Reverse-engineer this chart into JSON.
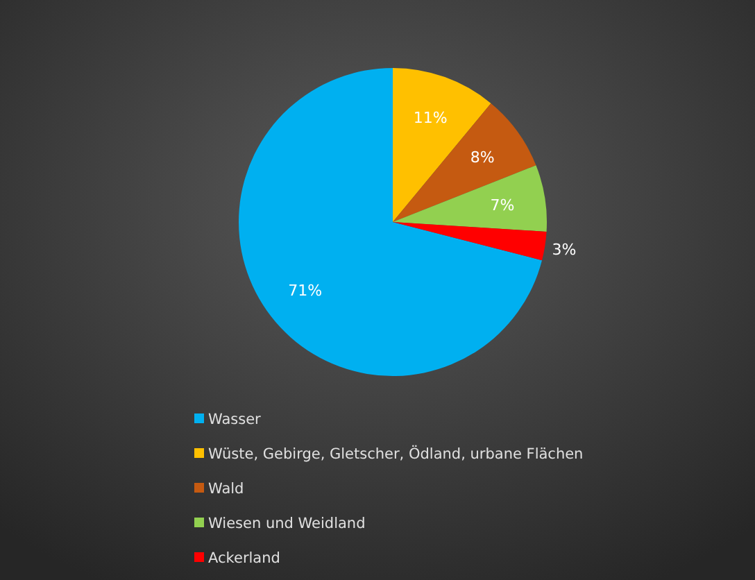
{
  "chart_data": {
    "type": "pie",
    "categories": [
      "Wasser",
      "Wüste, Gebirge, Gletscher, Ödland, urbane Flächen",
      "Wald",
      "Wiesen und Weidland",
      "Ackerland"
    ],
    "values": [
      71,
      11,
      8,
      7,
      3
    ],
    "colors": [
      "#00b0f0",
      "#ffc000",
      "#c55a11",
      "#92d050",
      "#ff0000"
    ],
    "value_labels": [
      "71%",
      "11%",
      "8%",
      "7%",
      "3%"
    ],
    "legend": "bottom left"
  }
}
